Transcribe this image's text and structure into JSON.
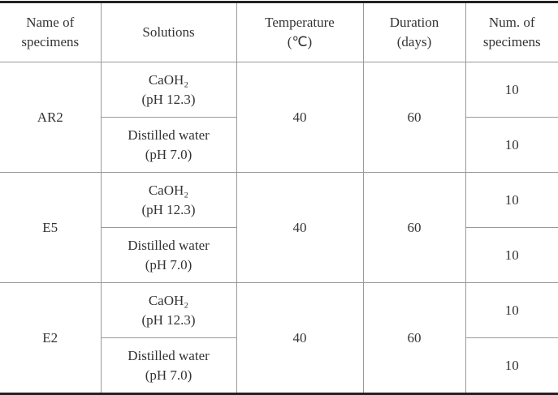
{
  "table": {
    "header": [
      [
        "Name of",
        "specimens"
      ],
      [
        "Solutions"
      ],
      [
        "Temperature",
        "(℃)"
      ],
      [
        "Duration",
        "(days)"
      ],
      [
        "Num. of",
        "specimens"
      ]
    ],
    "groups": [
      {
        "name": "AR2",
        "temperature": 40,
        "duration": 60,
        "rows": [
          {
            "solution": [
              "CaOH₂",
              "(pH 12.3)"
            ],
            "count": 10
          },
          {
            "solution": [
              "Distilled water",
              "(pH 7.0)"
            ],
            "count": 10
          }
        ]
      },
      {
        "name": "E5",
        "temperature": 40,
        "duration": 60,
        "rows": [
          {
            "solution": [
              "CaOH₂",
              "(pH 12.3)"
            ],
            "count": 10
          },
          {
            "solution": [
              "Distilled water",
              "(pH 7.0)"
            ],
            "count": 10
          }
        ]
      },
      {
        "name": "E2",
        "temperature": 40,
        "duration": 60,
        "rows": [
          {
            "solution": [
              "CaOH₂",
              "(pH 12.3)"
            ],
            "count": 10
          },
          {
            "solution": [
              "Distilled water",
              "(pH 7.0)"
            ],
            "count": 10
          }
        ]
      }
    ]
  }
}
